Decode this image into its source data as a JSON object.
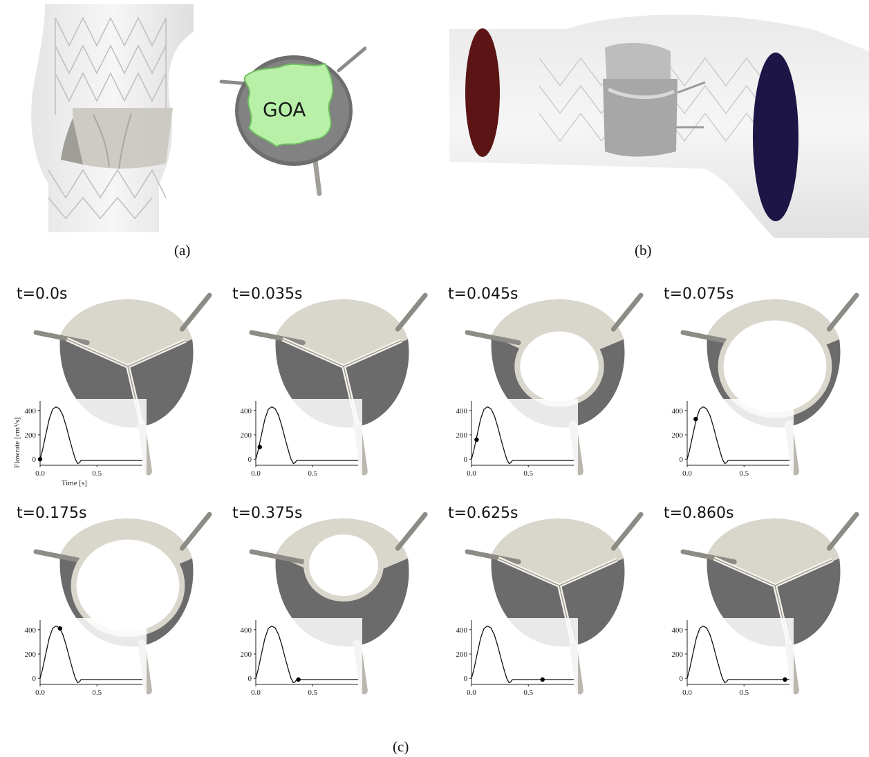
{
  "panel_a": {
    "caption": "(a)",
    "goa_label": "GOA"
  },
  "panel_b": {
    "caption": "(b)"
  },
  "panel_c": {
    "caption": "(c)",
    "inset_ylabel": "Flowrate [cm³/s]",
    "inset_xlabel": "Time [s]",
    "frames": [
      {
        "label": "t=0.0s",
        "t": 0.0,
        "state": "closed"
      },
      {
        "label": "t=0.035s",
        "t": 0.035,
        "state": "opening"
      },
      {
        "label": "t=0.045s",
        "t": 0.045,
        "state": "partly-open"
      },
      {
        "label": "t=0.075s",
        "t": 0.075,
        "state": "open"
      },
      {
        "label": "t=0.175s",
        "t": 0.175,
        "state": "open"
      },
      {
        "label": "t=0.375s",
        "t": 0.375,
        "state": "closing"
      },
      {
        "label": "t=0.625s",
        "t": 0.625,
        "state": "closed"
      },
      {
        "label": "t=0.860s",
        "t": 0.86,
        "state": "closed"
      }
    ]
  },
  "chart_data": {
    "type": "line",
    "xlabel": "Time [s]",
    "ylabel": "Flowrate [cm³/s]",
    "xlim": [
      0,
      0.9
    ],
    "ylim": [
      -50,
      450
    ],
    "x_ticks": [
      0.0,
      0.5
    ],
    "y_ticks": [
      0,
      200,
      400
    ],
    "x": [
      0.0,
      0.02,
      0.05,
      0.08,
      0.11,
      0.14,
      0.17,
      0.2,
      0.23,
      0.26,
      0.29,
      0.31,
      0.33,
      0.345,
      0.36,
      0.4,
      0.9
    ],
    "values": [
      0,
      70,
      200,
      330,
      410,
      430,
      415,
      360,
      270,
      160,
      60,
      0,
      -35,
      -30,
      -10,
      -10,
      -10
    ],
    "markers": [
      {
        "t": 0.0,
        "q": 0
      },
      {
        "t": 0.035,
        "q": 100
      },
      {
        "t": 0.045,
        "q": 160
      },
      {
        "t": 0.075,
        "q": 330
      },
      {
        "t": 0.175,
        "q": 410
      },
      {
        "t": 0.375,
        "q": -10
      },
      {
        "t": 0.625,
        "q": -10
      },
      {
        "t": 0.86,
        "q": -10
      }
    ]
  }
}
